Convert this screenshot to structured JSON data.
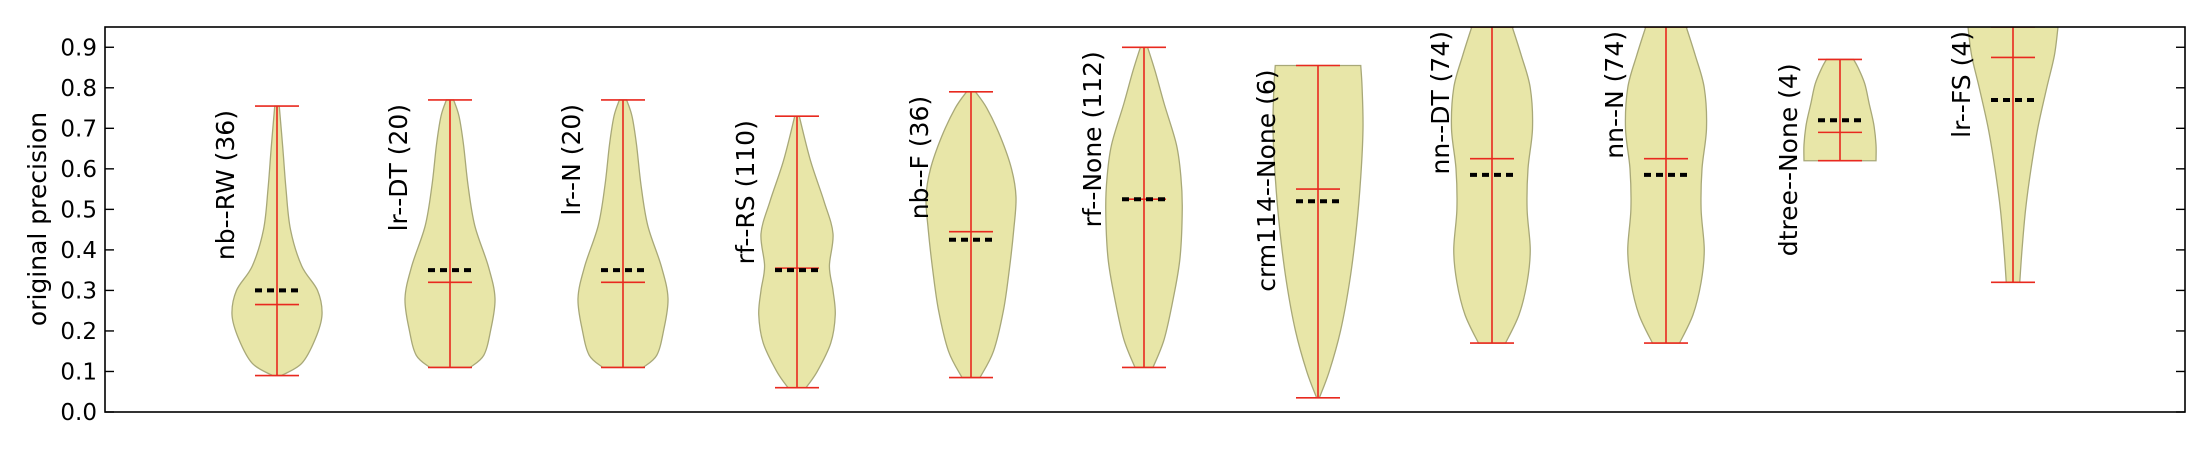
{
  "chart_data": {
    "type": "violin",
    "title": "",
    "xlabel": "",
    "ylabel": "original precision",
    "ylim": [
      0.0,
      0.95
    ],
    "yticks": [
      "0.0",
      "0.1",
      "0.2",
      "0.3",
      "0.4",
      "0.5",
      "0.6",
      "0.7",
      "0.8",
      "0.9"
    ],
    "grid": false,
    "colors": {
      "violin_fill": "#e8e6a8",
      "violin_edge": "#a8a878",
      "whisker": "#e8291f",
      "mean_marker": "#000000"
    },
    "violins": [
      {
        "label": "nb--RW (36)",
        "min": 0.09,
        "max": 0.755,
        "median": 0.265,
        "mean": 0.3,
        "profile": [
          [
            0.09,
            0.1
          ],
          [
            0.12,
            0.55
          ],
          [
            0.18,
            0.85
          ],
          [
            0.24,
            1.0
          ],
          [
            0.3,
            0.9
          ],
          [
            0.36,
            0.55
          ],
          [
            0.45,
            0.3
          ],
          [
            0.55,
            0.2
          ],
          [
            0.65,
            0.13
          ],
          [
            0.755,
            0.05
          ]
        ]
      },
      {
        "label": "lr--DT (20)",
        "min": 0.11,
        "max": 0.77,
        "median": 0.32,
        "mean": 0.35,
        "profile": [
          [
            0.11,
            0.45
          ],
          [
            0.14,
            0.75
          ],
          [
            0.2,
            0.9
          ],
          [
            0.28,
            1.0
          ],
          [
            0.36,
            0.85
          ],
          [
            0.46,
            0.55
          ],
          [
            0.56,
            0.4
          ],
          [
            0.66,
            0.3
          ],
          [
            0.73,
            0.2
          ],
          [
            0.77,
            0.08
          ]
        ]
      },
      {
        "label": "lr--N (20)",
        "min": 0.11,
        "max": 0.77,
        "median": 0.32,
        "mean": 0.35,
        "profile": [
          [
            0.11,
            0.45
          ],
          [
            0.14,
            0.75
          ],
          [
            0.2,
            0.9
          ],
          [
            0.28,
            1.0
          ],
          [
            0.36,
            0.85
          ],
          [
            0.46,
            0.55
          ],
          [
            0.56,
            0.4
          ],
          [
            0.66,
            0.3
          ],
          [
            0.73,
            0.2
          ],
          [
            0.77,
            0.08
          ]
        ]
      },
      {
        "label": "rf--RS (110)",
        "min": 0.06,
        "max": 0.73,
        "median": 0.355,
        "mean": 0.35,
        "profile": [
          [
            0.06,
            0.2
          ],
          [
            0.1,
            0.45
          ],
          [
            0.17,
            0.75
          ],
          [
            0.24,
            0.85
          ],
          [
            0.3,
            0.8
          ],
          [
            0.36,
            0.72
          ],
          [
            0.44,
            0.8
          ],
          [
            0.52,
            0.6
          ],
          [
            0.62,
            0.3
          ],
          [
            0.73,
            0.05
          ]
        ]
      },
      {
        "label": "nb--F (36)",
        "min": 0.085,
        "max": 0.79,
        "median": 0.445,
        "mean": 0.425,
        "profile": [
          [
            0.085,
            0.2
          ],
          [
            0.15,
            0.5
          ],
          [
            0.25,
            0.72
          ],
          [
            0.35,
            0.85
          ],
          [
            0.45,
            0.95
          ],
          [
            0.53,
            1.0
          ],
          [
            0.6,
            0.9
          ],
          [
            0.68,
            0.65
          ],
          [
            0.75,
            0.35
          ],
          [
            0.79,
            0.1
          ]
        ]
      },
      {
        "label": "rf--None (112)",
        "min": 0.11,
        "max": 0.9,
        "median": 0.525,
        "mean": 0.525,
        "profile": [
          [
            0.11,
            0.2
          ],
          [
            0.18,
            0.45
          ],
          [
            0.28,
            0.65
          ],
          [
            0.38,
            0.8
          ],
          [
            0.5,
            0.85
          ],
          [
            0.58,
            0.82
          ],
          [
            0.66,
            0.72
          ],
          [
            0.76,
            0.45
          ],
          [
            0.84,
            0.25
          ],
          [
            0.9,
            0.08
          ]
        ]
      },
      {
        "label": "crm114--None (6)",
        "min": 0.035,
        "max": 0.855,
        "median": 0.55,
        "mean": 0.52,
        "profile": [
          [
            0.035,
            0.03
          ],
          [
            0.1,
            0.25
          ],
          [
            0.2,
            0.5
          ],
          [
            0.32,
            0.7
          ],
          [
            0.45,
            0.85
          ],
          [
            0.58,
            0.95
          ],
          [
            0.7,
            1.0
          ],
          [
            0.8,
            0.98
          ],
          [
            0.855,
            0.95
          ]
        ]
      },
      {
        "label": "nn--DT (74)",
        "min": 0.17,
        "max": 0.95,
        "median": 0.625,
        "mean": 0.585,
        "profile": [
          [
            0.17,
            0.3
          ],
          [
            0.24,
            0.6
          ],
          [
            0.32,
            0.78
          ],
          [
            0.4,
            0.85
          ],
          [
            0.5,
            0.78
          ],
          [
            0.6,
            0.8
          ],
          [
            0.7,
            0.9
          ],
          [
            0.8,
            0.85
          ],
          [
            0.88,
            0.65
          ],
          [
            0.95,
            0.45
          ]
        ]
      },
      {
        "label": "nn--N (74)",
        "min": 0.17,
        "max": 0.95,
        "median": 0.625,
        "mean": 0.585,
        "profile": [
          [
            0.17,
            0.3
          ],
          [
            0.24,
            0.6
          ],
          [
            0.32,
            0.78
          ],
          [
            0.4,
            0.85
          ],
          [
            0.5,
            0.78
          ],
          [
            0.6,
            0.8
          ],
          [
            0.7,
            0.9
          ],
          [
            0.8,
            0.85
          ],
          [
            0.88,
            0.65
          ],
          [
            0.95,
            0.45
          ]
        ]
      },
      {
        "label": "dtree--None (4)",
        "min": 0.62,
        "max": 0.87,
        "median": 0.69,
        "mean": 0.72,
        "profile": [
          [
            0.62,
            0.8
          ],
          [
            0.66,
            0.8
          ],
          [
            0.71,
            0.75
          ],
          [
            0.76,
            0.65
          ],
          [
            0.81,
            0.55
          ],
          [
            0.85,
            0.4
          ],
          [
            0.87,
            0.3
          ]
        ]
      },
      {
        "label": "lr--FS (4)",
        "min": 0.32,
        "max": 0.95,
        "median": 0.875,
        "mean": 0.77,
        "profile": [
          [
            0.32,
            0.15
          ],
          [
            0.4,
            0.2
          ],
          [
            0.5,
            0.28
          ],
          [
            0.6,
            0.4
          ],
          [
            0.7,
            0.55
          ],
          [
            0.8,
            0.75
          ],
          [
            0.88,
            0.92
          ],
          [
            0.95,
            1.0
          ]
        ]
      }
    ]
  }
}
